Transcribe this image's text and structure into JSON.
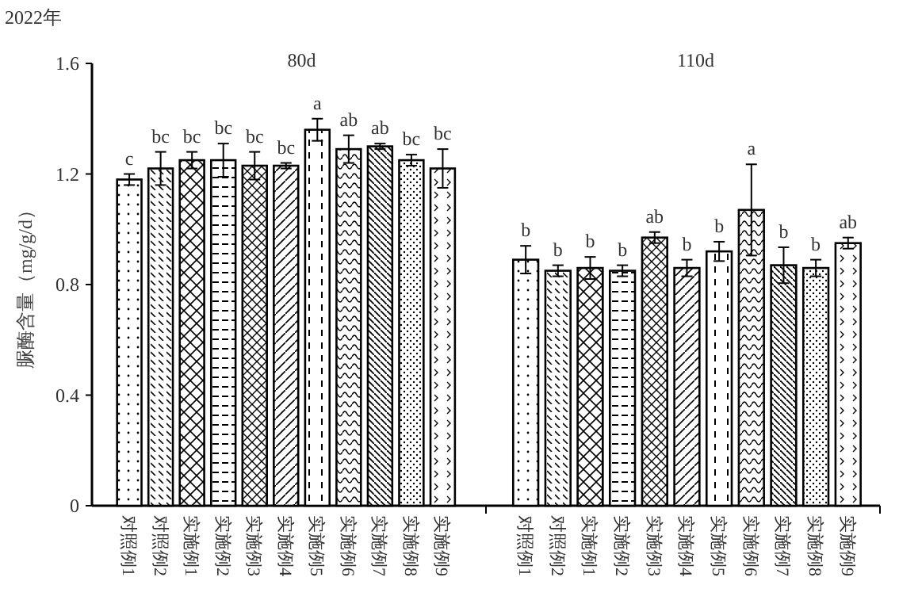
{
  "chart_data": [
    {
      "type": "bar",
      "title": "80d",
      "ylabel": "脲酶含量（mg/g/d）",
      "annotations": [
        "2022年"
      ],
      "categories": [
        "对照例1",
        "对照例2",
        "实施例1",
        "实施例2",
        "实施例3",
        "实施例4",
        "实施例5",
        "实施例6",
        "实施例7",
        "实施例8",
        "实施例9"
      ],
      "series": [
        {
          "color": "#ffffff",
          "values": [
            1.18,
            1.22,
            1.25,
            1.25,
            1.23,
            1.23,
            1.36,
            1.29,
            1.3,
            1.25,
            1.22
          ],
          "errors": [
            0.02,
            0.06,
            0.03,
            0.06,
            0.05,
            0.01,
            0.04,
            0.05,
            0.01,
            0.02,
            0.07
          ],
          "value_labels": [
            "c",
            "bc",
            "bc",
            "bc",
            "bc",
            "bc",
            "a",
            "ab",
            "ab",
            "bc",
            "bc"
          ]
        }
      ],
      "ylim": [
        0,
        1.6
      ],
      "yticks": [
        0,
        0.4,
        0.8,
        1.2,
        1.6
      ]
    },
    {
      "type": "bar",
      "title": "110d",
      "categories": [
        "对照例1",
        "对照例2",
        "实施例1",
        "实施例2",
        "实施例3",
        "实施例4",
        "实施例5",
        "实施例6",
        "实施例7",
        "实施例8",
        "实施例9"
      ],
      "series": [
        {
          "color": "#ffffff",
          "values": [
            0.89,
            0.85,
            0.86,
            0.85,
            0.97,
            0.86,
            0.92,
            1.07,
            0.87,
            0.86,
            0.95
          ],
          "errors": [
            0.05,
            0.02,
            0.04,
            0.02,
            0.02,
            0.03,
            0.035,
            0.165,
            0.065,
            0.03,
            0.02
          ],
          "value_labels": [
            "b",
            "b",
            "b",
            "b",
            "ab",
            "b",
            "b",
            "a",
            "b",
            "b",
            "ab"
          ]
        }
      ],
      "ylim": [
        0,
        1.6
      ],
      "tick_labels": "x"
    }
  ]
}
